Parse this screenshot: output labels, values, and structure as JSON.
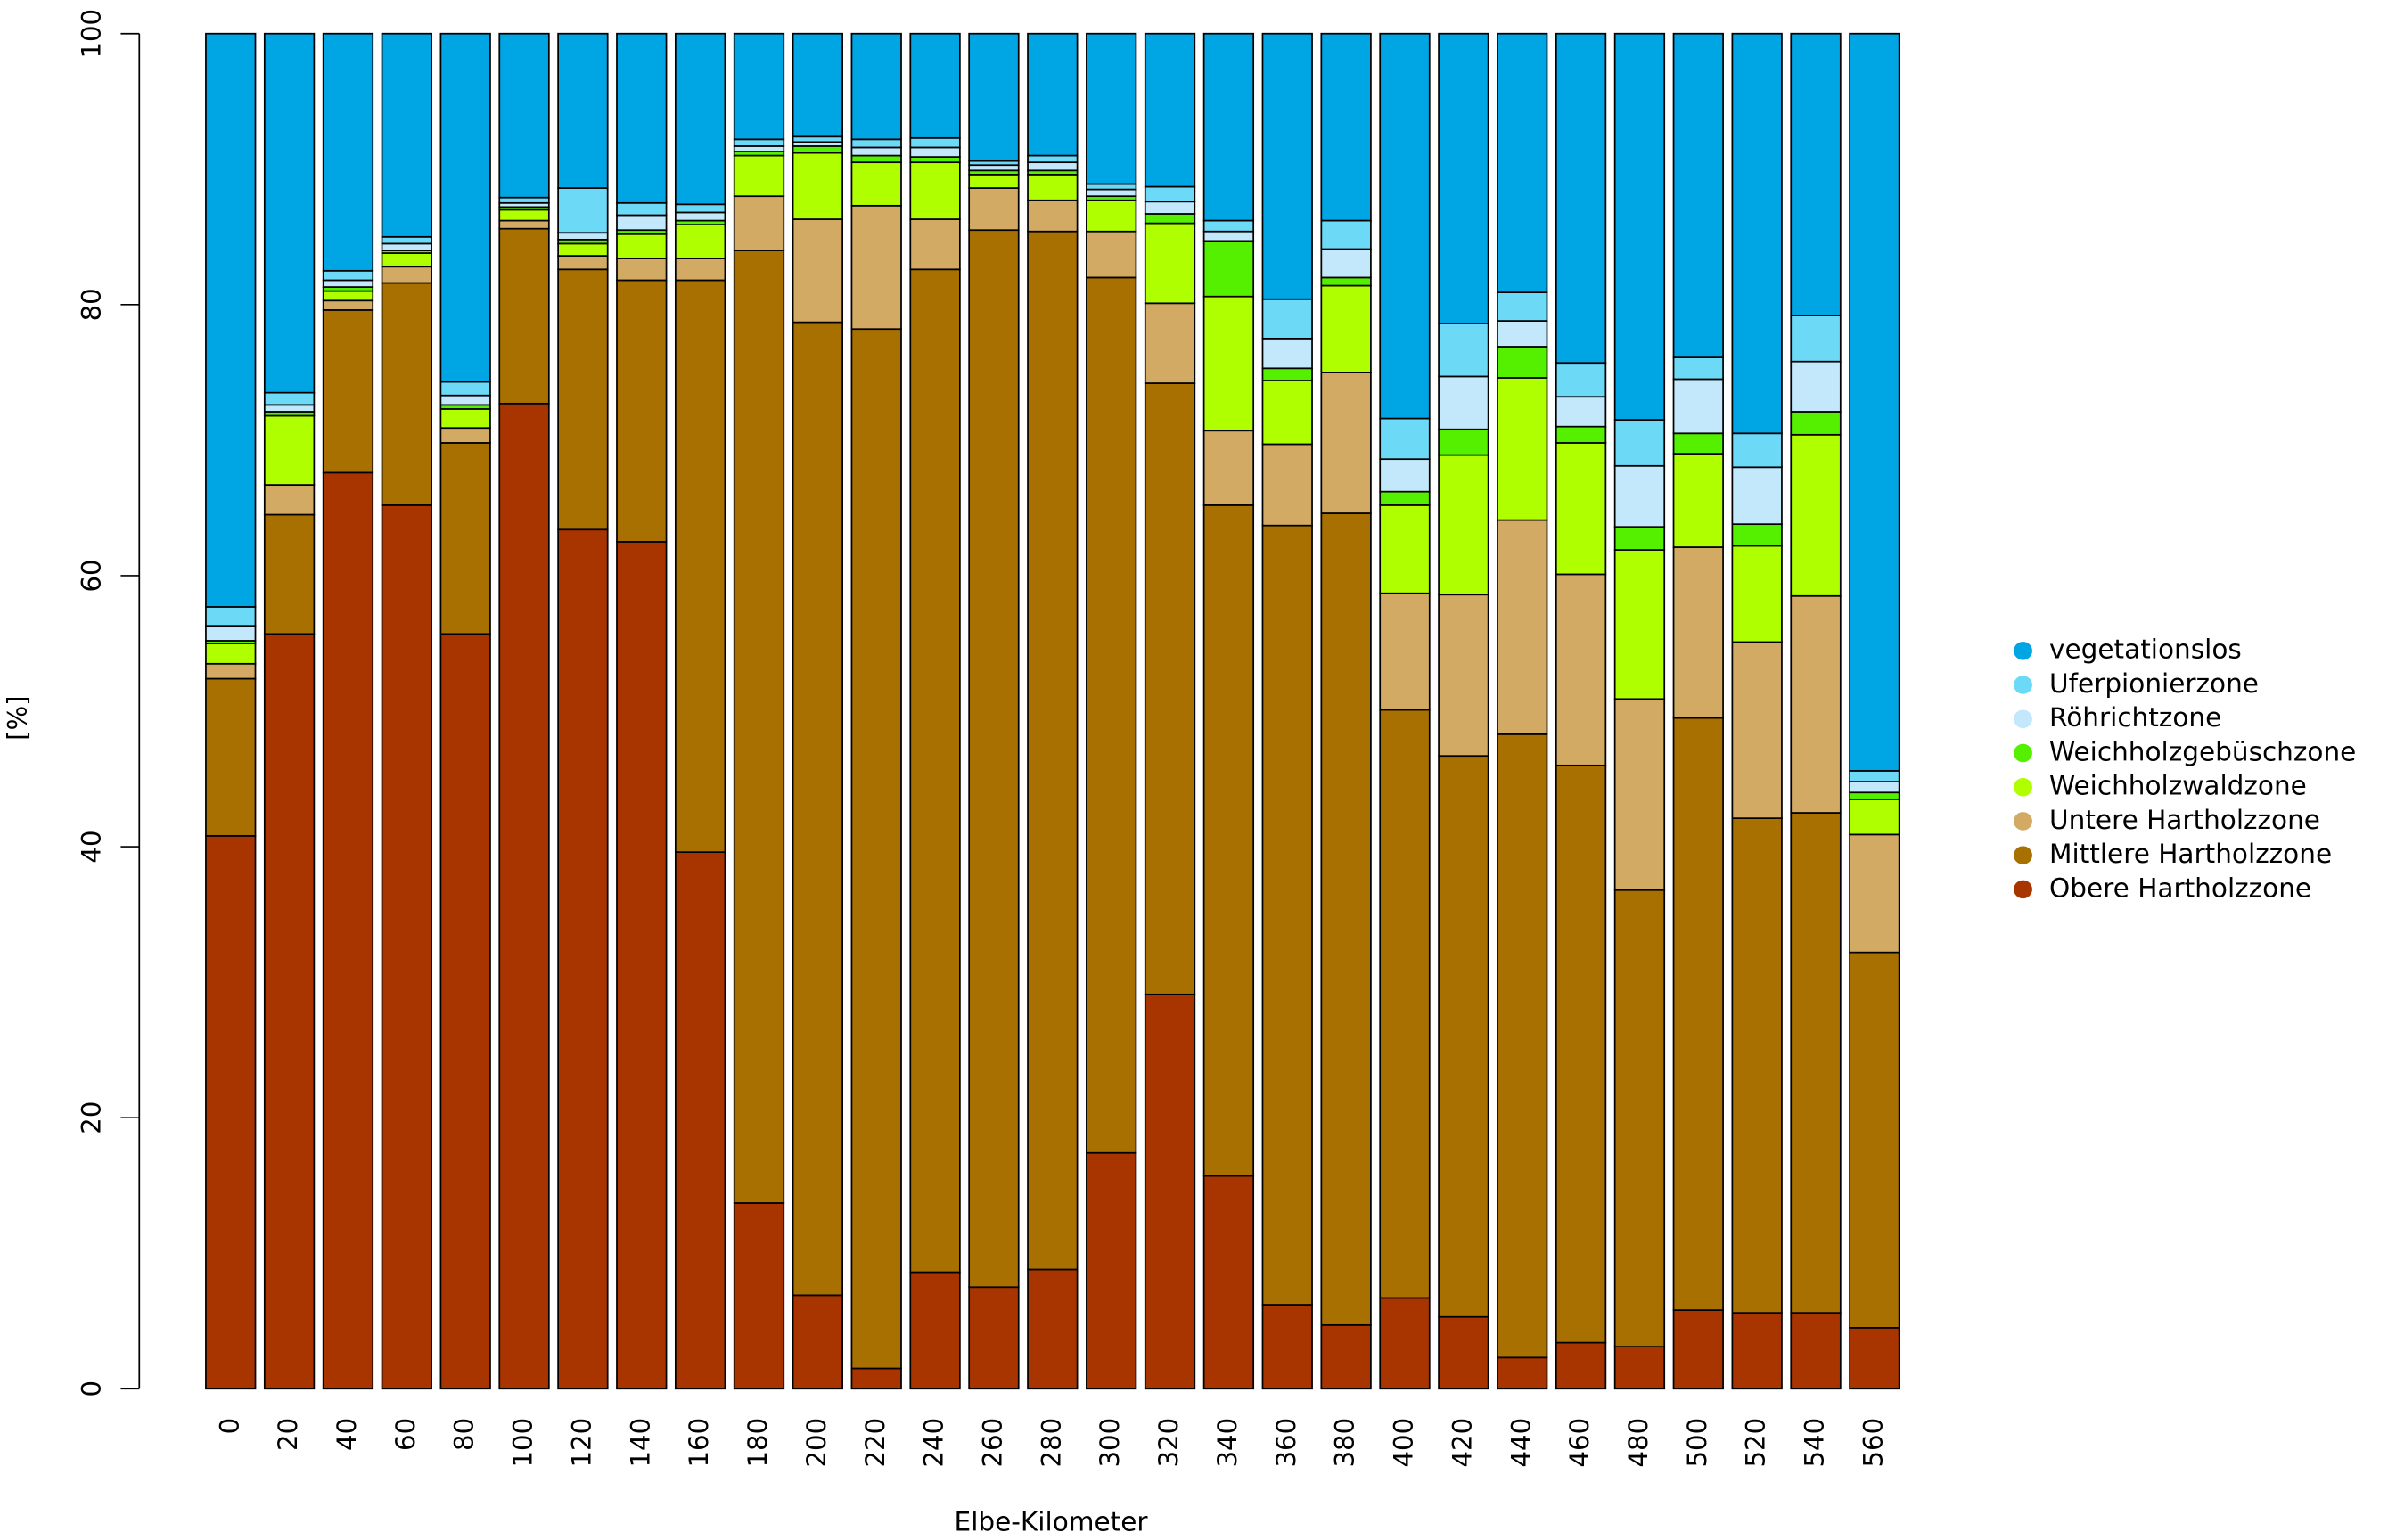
{
  "chart_data": {
    "type": "stacked_bar",
    "x_label": "Elbe-Kilometer",
    "y_label": "[%]",
    "categories": [
      "0",
      "20",
      "40",
      "60",
      "80",
      "100",
      "120",
      "140",
      "160",
      "180",
      "200",
      "220",
      "240",
      "260",
      "280",
      "300",
      "320",
      "340",
      "360",
      "380",
      "400",
      "420",
      "440",
      "460",
      "480",
      "500",
      "520",
      "540",
      "560"
    ],
    "ylim": [
      0,
      100
    ],
    "yticks": [
      0,
      20,
      40,
      60,
      80,
      100
    ],
    "series": [
      {
        "name": "Obere Hartholzzone",
        "color": "#a83500",
        "values": [
          40.8,
          55.7,
          67.6,
          65.2,
          55.7,
          72.7,
          63.4,
          62.5,
          39.6,
          13.7,
          6.9,
          1.5,
          8.6,
          7.5,
          8.8,
          17.4,
          29.1,
          15.7,
          6.2,
          4.7,
          6.7,
          5.3,
          2.3,
          3.4,
          3.1,
          5.8,
          5.6,
          5.6,
          4.5
        ]
      },
      {
        "name": "Mittlere Hartholzzone",
        "color": "#a87000",
        "values": [
          11.6,
          8.8,
          12.0,
          16.4,
          14.1,
          12.9,
          19.2,
          19.3,
          42.2,
          70.3,
          71.8,
          76.7,
          74.0,
          78.0,
          76.6,
          64.6,
          45.1,
          49.5,
          57.5,
          59.9,
          43.4,
          41.4,
          46.0,
          42.6,
          33.7,
          43.7,
          36.5,
          36.9,
          27.7
        ]
      },
      {
        "name": "Untere Hartholzzone",
        "color": "#d2aa64",
        "values": [
          1.1,
          2.2,
          0.7,
          1.2,
          1.1,
          0.6,
          1.0,
          1.6,
          1.6,
          4.0,
          7.6,
          9.1,
          3.7,
          3.1,
          2.3,
          3.4,
          5.9,
          5.5,
          6.0,
          10.4,
          8.6,
          11.9,
          15.8,
          14.1,
          14.1,
          12.6,
          13.0,
          16.0,
          8.7
        ]
      },
      {
        "name": "Weichholzwaldzone",
        "color": "#b0ff00",
        "values": [
          1.5,
          5.1,
          0.7,
          1.0,
          1.4,
          0.8,
          0.9,
          1.8,
          2.5,
          3.0,
          4.9,
          3.2,
          4.2,
          1.0,
          1.9,
          2.3,
          5.9,
          9.9,
          4.7,
          6.4,
          6.5,
          10.3,
          10.5,
          9.7,
          11.0,
          6.9,
          7.1,
          11.9,
          2.6
        ]
      },
      {
        "name": "Weichholzgebüschzone",
        "color": "#55f000",
        "values": [
          0.2,
          0.3,
          0.3,
          0.2,
          0.3,
          0.2,
          0.3,
          0.3,
          0.3,
          0.3,
          0.5,
          0.5,
          0.4,
          0.3,
          0.3,
          0.3,
          0.7,
          4.1,
          0.9,
          0.6,
          1.0,
          1.9,
          2.3,
          1.2,
          1.7,
          1.5,
          1.6,
          1.7,
          0.5
        ]
      },
      {
        "name": "Röhrichtzone",
        "color": "#c3e8fb",
        "values": [
          1.1,
          0.5,
          0.5,
          0.5,
          0.7,
          0.3,
          0.5,
          1.1,
          0.6,
          0.4,
          0.3,
          0.6,
          0.7,
          0.4,
          0.6,
          0.5,
          0.9,
          0.7,
          2.2,
          2.1,
          2.4,
          3.9,
          1.9,
          2.2,
          4.5,
          4.0,
          4.2,
          3.7,
          0.8
        ]
      },
      {
        "name": "Uferpionierzone",
        "color": "#6cd9f7",
        "values": [
          1.4,
          0.9,
          0.7,
          0.5,
          1.0,
          0.4,
          3.3,
          0.9,
          0.6,
          0.5,
          0.4,
          0.6,
          0.7,
          0.3,
          0.5,
          0.4,
          1.1,
          0.8,
          2.9,
          2.1,
          3.0,
          3.9,
          2.1,
          2.5,
          3.4,
          1.6,
          2.5,
          3.4,
          0.8
        ]
      },
      {
        "name": "vegetationslos",
        "color": "#00a5e3",
        "values": [
          42.3,
          26.5,
          17.5,
          15.0,
          25.7,
          12.1,
          11.4,
          12.5,
          12.6,
          7.8,
          7.6,
          7.8,
          7.7,
          9.4,
          9.0,
          11.1,
          11.3,
          13.8,
          19.6,
          13.8,
          28.4,
          21.4,
          19.1,
          24.3,
          28.5,
          23.9,
          29.5,
          20.8,
          54.4
        ]
      }
    ]
  }
}
